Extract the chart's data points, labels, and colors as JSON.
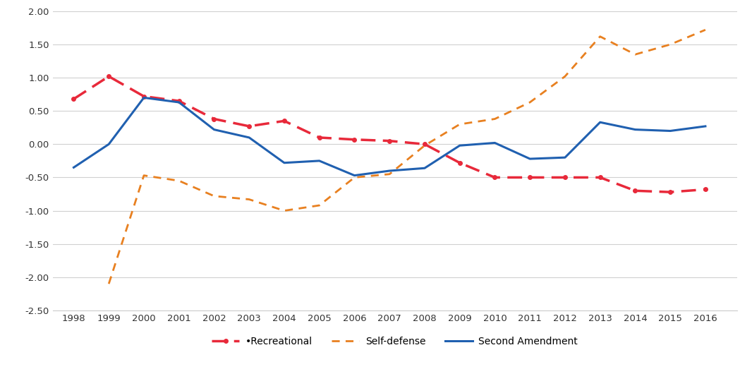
{
  "years": [
    1998,
    1999,
    2000,
    2001,
    2002,
    2003,
    2004,
    2005,
    2006,
    2007,
    2008,
    2009,
    2010,
    2011,
    2012,
    2013,
    2014,
    2015,
    2016
  ],
  "recreational": [
    0.68,
    1.02,
    0.72,
    0.65,
    0.38,
    0.27,
    0.35,
    0.1,
    0.07,
    0.05,
    0.0,
    -0.28,
    -0.5,
    -0.5,
    -0.5,
    -0.5,
    -0.7,
    -0.72,
    -0.68
  ],
  "self_defense": [
    null,
    -2.1,
    -0.47,
    -0.55,
    -0.78,
    -0.83,
    -1.0,
    -0.92,
    -0.5,
    -0.45,
    -0.02,
    0.3,
    0.38,
    0.63,
    1.02,
    1.62,
    1.35,
    1.5,
    1.72
  ],
  "second_amendment": [
    -0.35,
    0.0,
    0.7,
    0.63,
    0.22,
    0.1,
    -0.28,
    -0.25,
    -0.47,
    -0.4,
    -0.36,
    -0.02,
    0.02,
    -0.22,
    -0.2,
    0.33,
    0.22,
    0.2,
    0.27
  ],
  "recreational_color": "#e8293a",
  "self_defense_color": "#e88020",
  "second_amendment_color": "#2060b0",
  "ylim": [
    -2.5,
    2.0
  ],
  "yticks": [
    -2.5,
    -2.0,
    -1.5,
    -1.0,
    -0.5,
    0.0,
    0.5,
    1.0,
    1.5,
    2.0
  ],
  "background_color": "#ffffff",
  "grid_color": "#d0d0d0",
  "legend_labels": [
    "•Recreational",
    "Self-defense",
    "Second Amendment"
  ]
}
